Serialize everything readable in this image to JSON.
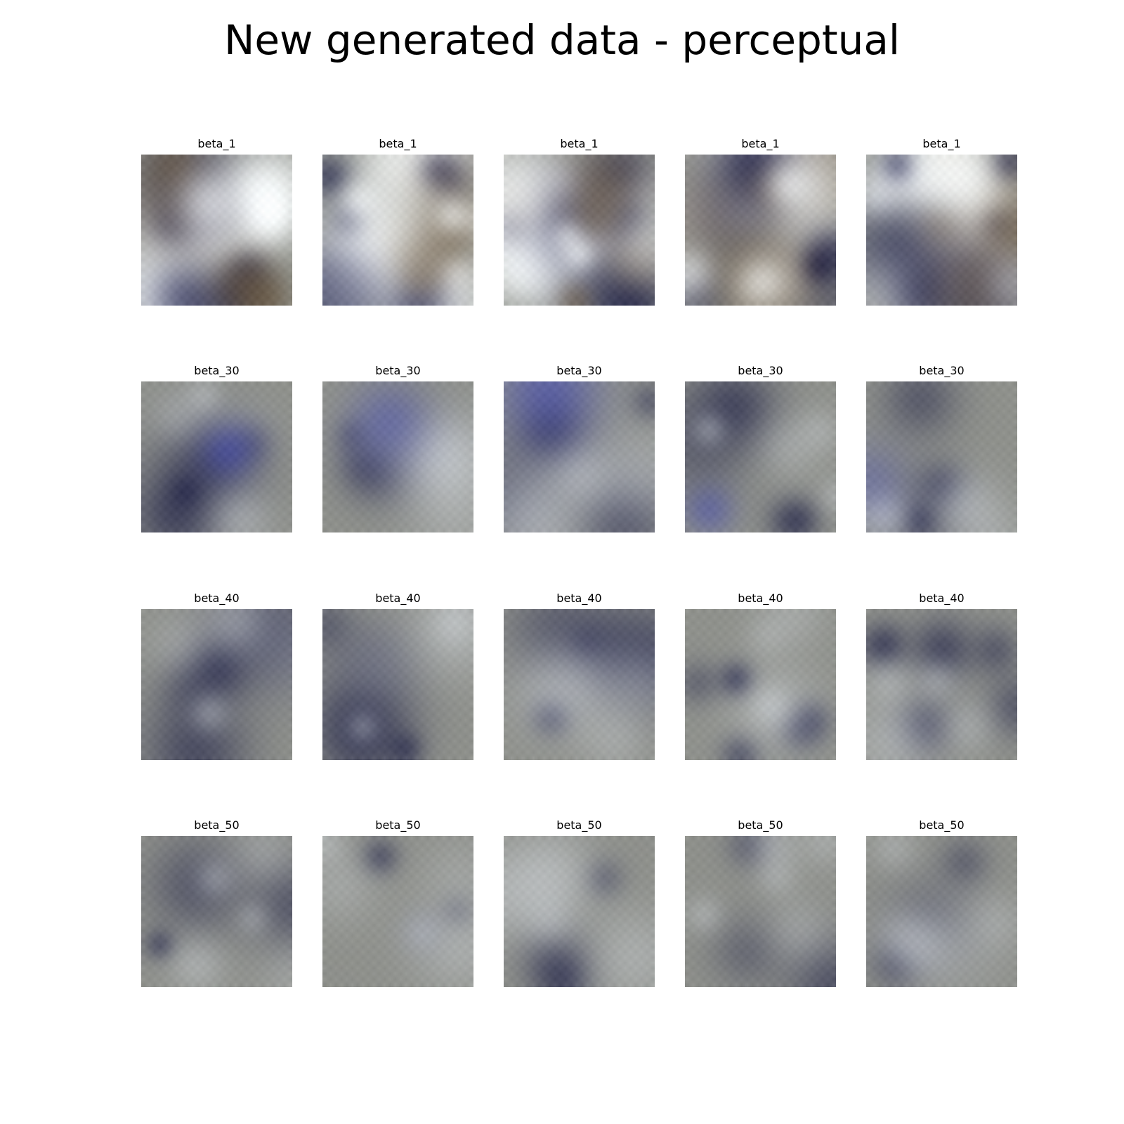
{
  "title": "New generated data - perceptual",
  "rows": [
    {
      "label": "beta_1",
      "tiles": [
        {
          "label": "beta_1",
          "tone": "high-contrast white, navy and brown blobs"
        },
        {
          "label": "beta_1",
          "tone": "bright white central blob on dark navy"
        },
        {
          "label": "beta_1",
          "tone": "white swirl with dark navy lower-right"
        },
        {
          "label": "beta_1",
          "tone": "navy blob in center on white with brown edges"
        },
        {
          "label": "beta_1",
          "tone": "mottled navy and grey with brown lower area"
        }
      ]
    },
    {
      "label": "beta_30",
      "tiles": [
        {
          "label": "beta_30",
          "tone": "blue patch upper-left on grey"
        },
        {
          "label": "beta_30",
          "tone": "navy upper-left on grey"
        },
        {
          "label": "beta_30",
          "tone": "navy vertical shape in center on grey"
        },
        {
          "label": "beta_30",
          "tone": "thin navy vertical stroke on grey"
        },
        {
          "label": "beta_30",
          "tone": "blurry dark grey shapes"
        }
      ]
    },
    {
      "label": "beta_40",
      "tiles": [
        {
          "label": "beta_40",
          "tone": "dark navy blotches on grey"
        },
        {
          "label": "beta_40",
          "tone": "dark navy x-shaped pattern"
        },
        {
          "label": "beta_40",
          "tone": "navy swirl in center on light grey"
        },
        {
          "label": "beta_40",
          "tone": "faint grey shapes"
        },
        {
          "label": "beta_40",
          "tone": "dark navy and grey blocks"
        }
      ]
    },
    {
      "label": "beta_50",
      "tiles": [
        {
          "label": "beta_50",
          "tone": "dark navy diagonal strokes on grey"
        },
        {
          "label": "beta_50",
          "tone": "faint grey blobs"
        },
        {
          "label": "beta_50",
          "tone": "light square with navy left edge"
        },
        {
          "label": "beta_50",
          "tone": "navy vertical shape left of center"
        },
        {
          "label": "beta_50",
          "tone": "dark navy upper area on grey"
        }
      ]
    }
  ],
  "palette": {
    "navy": "#14163f",
    "grey": "#8f918c",
    "light": "#d6dbe0",
    "white": "#eef1f2",
    "brown": "#6b5c49",
    "blue": "#2a33c2"
  }
}
